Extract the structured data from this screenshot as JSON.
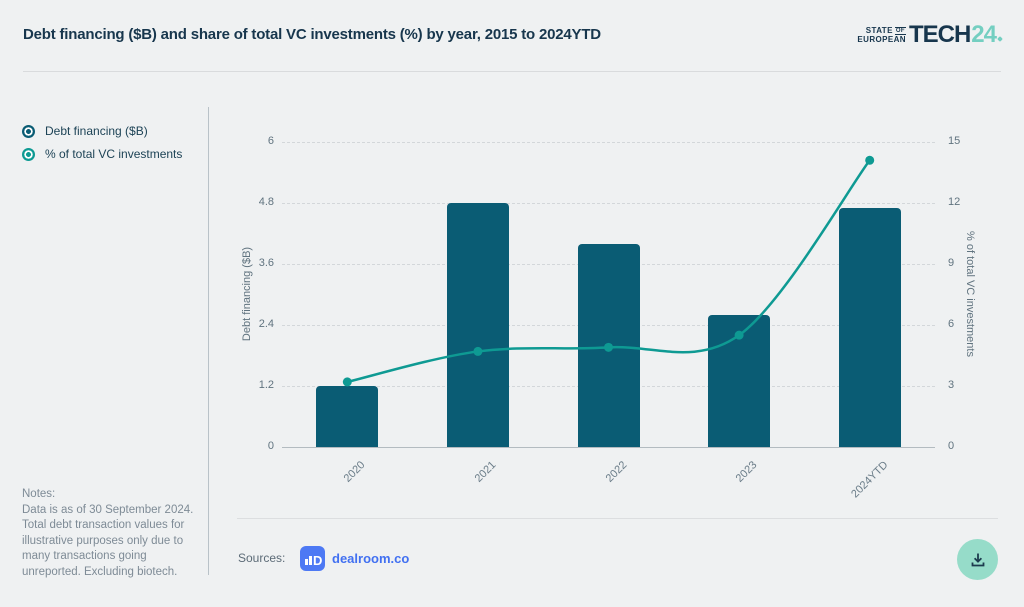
{
  "header": {
    "title": "Debt financing ($B) and share of total VC investments (%) by year, 2015 to 2024YTD",
    "logo": {
      "state": "STATE",
      "of": "OF",
      "european": "EUROPEAN",
      "tech": "TECH",
      "year": "24"
    }
  },
  "legend": {
    "items": [
      {
        "label": "Debt financing ($B)",
        "color": "#0a5c74"
      },
      {
        "label": "% of total VC investments",
        "color": "#0e9a93"
      }
    ]
  },
  "notes": {
    "heading": "Notes:",
    "body": "Data is as of 30 September 2024. Total debt transaction values for illustrative purposes only due to many transactions going unreported. Excluding biotech."
  },
  "sources": {
    "label": "Sources:",
    "link": "dealroom.co"
  },
  "download": {
    "background": "#96dcc9",
    "icon_color": "#1d3b4e"
  },
  "chart_data": {
    "type": "bar",
    "title": "Debt financing ($B) and share of total VC investments (%) by year, 2015 to 2024YTD",
    "categories": [
      "2020",
      "2021",
      "2022",
      "2023",
      "2024YTD"
    ],
    "series": [
      {
        "name": "Debt financing ($B)",
        "type": "bar",
        "axis": "left",
        "color": "#0a5c74",
        "values": [
          1.2,
          4.8,
          4.0,
          2.6,
          4.7
        ]
      },
      {
        "name": "% of total VC investments",
        "type": "line",
        "axis": "right",
        "color": "#0e9a93",
        "values": [
          3.2,
          4.7,
          4.9,
          5.5,
          14.1
        ]
      }
    ],
    "left_axis": {
      "label": "Debt financing ($B)",
      "ticks": [
        0,
        1.2,
        2.4,
        3.6,
        4.8,
        6
      ],
      "range": [
        0,
        6
      ]
    },
    "right_axis": {
      "label": "% of total VC investments",
      "ticks": [
        0,
        3,
        6,
        9,
        12,
        15
      ],
      "range": [
        0,
        15
      ]
    },
    "grid": {
      "horizontal": true,
      "style": "dashed"
    },
    "legend_position": "top-left"
  }
}
